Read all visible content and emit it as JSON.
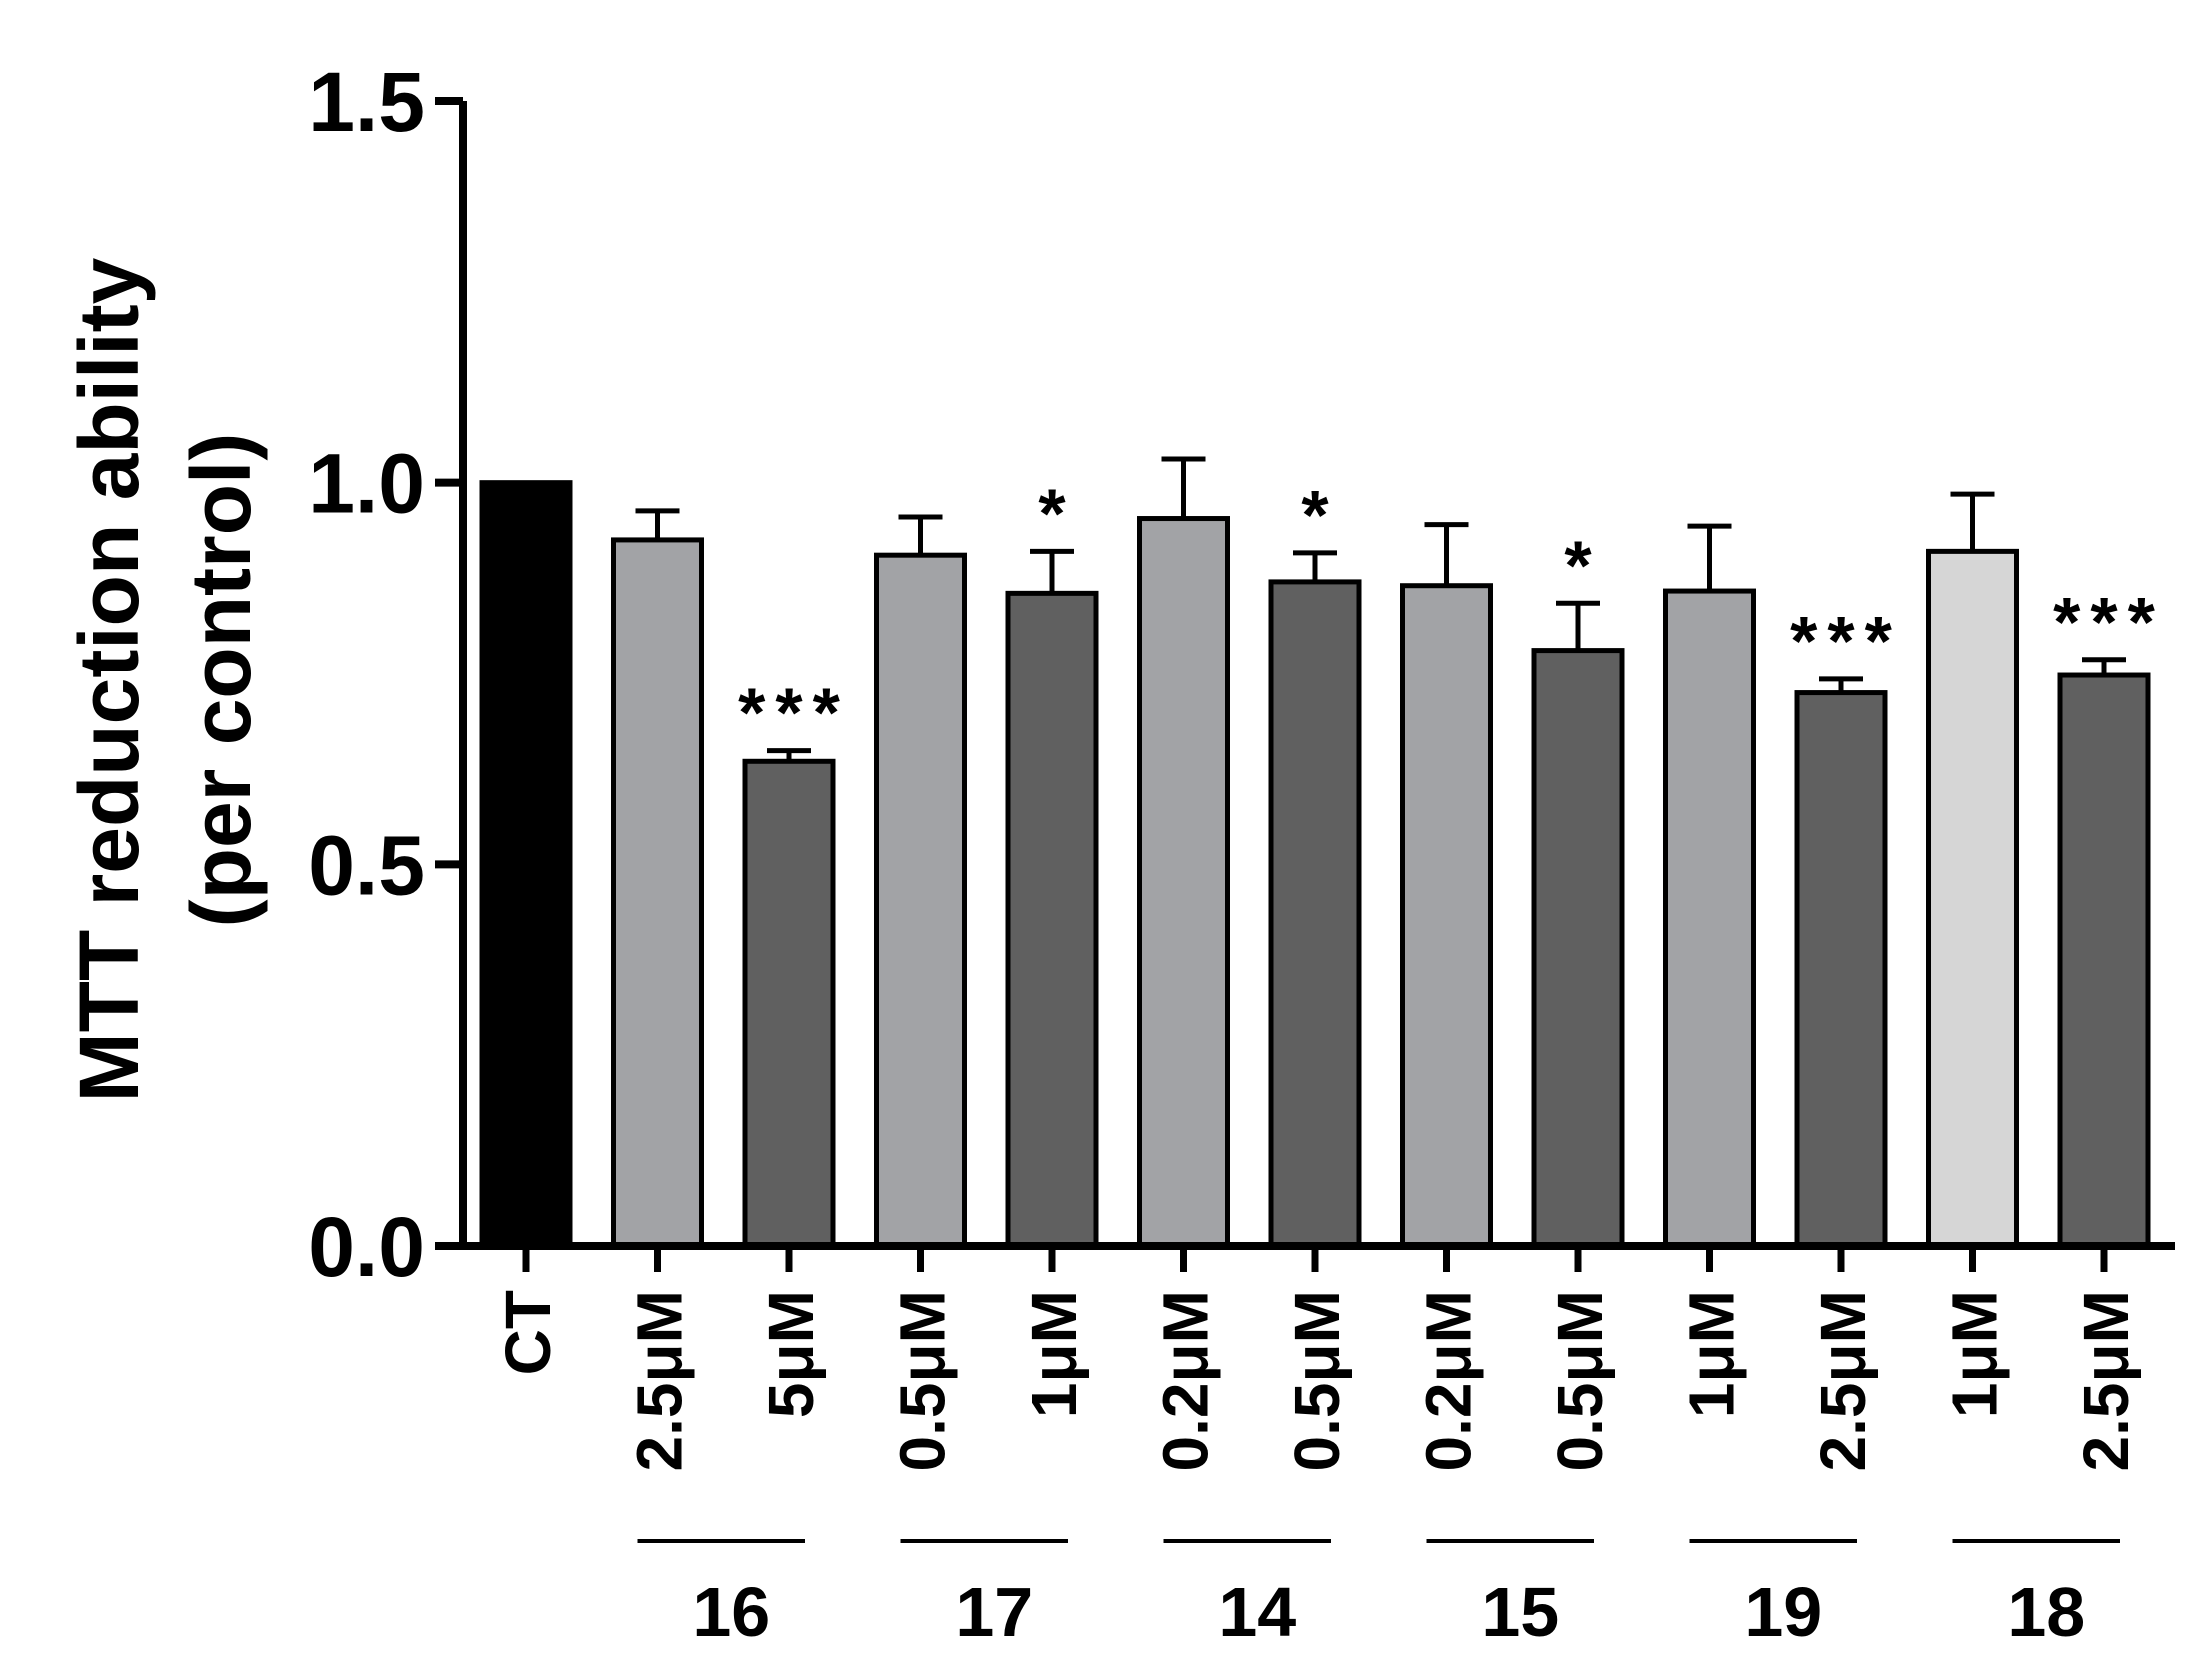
{
  "chart_data": {
    "type": "bar",
    "title": "",
    "xlabel": "",
    "ylabel_lines": [
      "MTT reduction ability",
      "(per control)"
    ],
    "ylim": [
      0,
      1.5
    ],
    "yticks": [
      "0.0",
      "0.5",
      "1.0",
      "1.5"
    ],
    "grid": false,
    "legend": "none",
    "categories": [
      "CT",
      "2.5μM",
      "5μM",
      "0.5μM",
      "1μM",
      "0.2μM",
      "0.5μM",
      "0.2μM",
      "0.5μM",
      "1μM",
      "2.5μM",
      "1μM",
      "2.5μM"
    ],
    "values": [
      1.0,
      0.925,
      0.635,
      0.905,
      0.855,
      0.953,
      0.87,
      0.865,
      0.78,
      0.858,
      0.725,
      0.91,
      0.748
    ],
    "errors": [
      0.0,
      0.038,
      0.014,
      0.05,
      0.055,
      0.078,
      0.038,
      0.08,
      0.062,
      0.085,
      0.018,
      0.075,
      0.02
    ],
    "significance": [
      "",
      "",
      "***",
      "",
      "*",
      "",
      "*",
      "",
      "*",
      "",
      "***",
      "",
      "***"
    ],
    "colors": [
      "#000000",
      "#a2a3a6",
      "#606060",
      "#a2a3a6",
      "#606060",
      "#a2a3a6",
      "#606060",
      "#a2a3a6",
      "#606060",
      "#a2a3a6",
      "#606060",
      "#d6d6d6",
      "#606060"
    ],
    "groups": [
      {
        "label": "16",
        "members": [
          1,
          2
        ]
      },
      {
        "label": "17",
        "members": [
          3,
          4
        ]
      },
      {
        "label": "14",
        "members": [
          5,
          6
        ]
      },
      {
        "label": "15",
        "members": [
          7,
          8
        ]
      },
      {
        "label": "19",
        "members": [
          9,
          10
        ]
      },
      {
        "label": "18",
        "members": [
          11,
          12
        ]
      }
    ]
  }
}
